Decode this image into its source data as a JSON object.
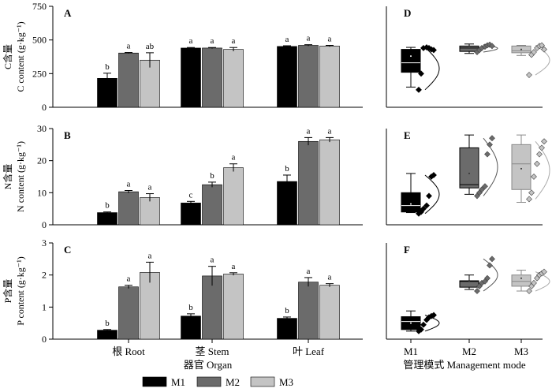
{
  "colors": {
    "M1": "#000000",
    "M2": "#6b6b6b",
    "M3": "#c4c4c4"
  },
  "legend": [
    "M1",
    "M2",
    "M3"
  ],
  "left_xlabel": "器官 Organ",
  "right_xlabel": "管理模式 Management mode",
  "chart_data": [
    {
      "type": "bar",
      "panel": "A",
      "ylabel_cn": "C含量",
      "ylabel_en": "C content (g·kg⁻¹)",
      "ylim": [
        0,
        750
      ],
      "yticks": [
        0,
        250,
        500,
        750
      ],
      "categories": [
        "根 Root",
        "茎 Stem",
        "叶 Leaf"
      ],
      "series": [
        {
          "name": "M1",
          "values": [
            215,
            440,
            452
          ],
          "errors": [
            38,
            4,
            5
          ],
          "letters": [
            "b",
            "a",
            "a"
          ]
        },
        {
          "name": "M2",
          "values": [
            403,
            440,
            460
          ],
          "errors": [
            4,
            4,
            5
          ],
          "letters": [
            "a",
            "a",
            "a"
          ]
        },
        {
          "name": "M3",
          "values": [
            350,
            430,
            455
          ],
          "errors": [
            55,
            14,
            5
          ],
          "letters": [
            "ab",
            "a",
            "a"
          ]
        }
      ]
    },
    {
      "type": "bar",
      "panel": "B",
      "ylabel_cn": "N含量",
      "ylabel_en": "N content (g·kg⁻¹)",
      "ylim": [
        0,
        30
      ],
      "yticks": [
        0,
        10,
        20,
        30
      ],
      "categories": [
        "根 Root",
        "茎 Stem",
        "叶 Leaf"
      ],
      "series": [
        {
          "name": "M1",
          "values": [
            3.8,
            6.8,
            13.5
          ],
          "errors": [
            0.2,
            0.5,
            2
          ],
          "letters": [
            "b",
            "c",
            "b"
          ]
        },
        {
          "name": "M2",
          "values": [
            10.3,
            12.5,
            26
          ],
          "errors": [
            0.4,
            0.8,
            1.2
          ],
          "letters": [
            "a",
            "b",
            "a"
          ]
        },
        {
          "name": "M3",
          "values": [
            8.5,
            17.8,
            26.5
          ],
          "errors": [
            1.2,
            1.2,
            0.7
          ],
          "letters": [
            "a",
            "a",
            "a"
          ]
        }
      ]
    },
    {
      "type": "bar",
      "panel": "C",
      "ylabel_cn": "P含量",
      "ylabel_en": "P content (g·kg⁻¹)",
      "ylim": [
        0,
        3
      ],
      "yticks": [
        0,
        1,
        2,
        3
      ],
      "categories": [
        "根 Root",
        "茎 Stem",
        "叶 Leaf"
      ],
      "series": [
        {
          "name": "M1",
          "values": [
            0.28,
            0.72,
            0.65
          ],
          "errors": [
            0.02,
            0.07,
            0.04
          ],
          "letters": [
            "b",
            "b",
            "b"
          ]
        },
        {
          "name": "M2",
          "values": [
            1.63,
            1.97,
            1.78
          ],
          "errors": [
            0.05,
            0.3,
            0.14
          ],
          "letters": [
            "a",
            "a",
            "a"
          ]
        },
        {
          "name": "M3",
          "values": [
            2.08,
            2.03,
            1.68
          ],
          "errors": [
            0.32,
            0.04,
            0.05
          ],
          "letters": [
            "a",
            "a",
            "a"
          ]
        }
      ]
    },
    {
      "type": "box",
      "panel": "D",
      "ylim": [
        0,
        750
      ],
      "categories": [
        "M1",
        "M2",
        "M3"
      ],
      "boxes": [
        {
          "whisker_low": 150,
          "q1": 260,
          "median": 330,
          "q3": 430,
          "whisker_high": 445,
          "mean": 380,
          "points": [
            130,
            250,
            440,
            445,
            440,
            430,
            425
          ]
        },
        {
          "whisker_low": 400,
          "q1": 415,
          "median": 440,
          "q3": 455,
          "whisker_high": 470,
          "mean": 440,
          "points": [
            410,
            425,
            440,
            450,
            460,
            465,
            455
          ]
        },
        {
          "whisker_low": 385,
          "q1": 405,
          "median": 420,
          "q3": 455,
          "whisker_high": 460,
          "mean": 430,
          "points": [
            240,
            390,
            410,
            440,
            455,
            460,
            430
          ]
        }
      ]
    },
    {
      "type": "box",
      "panel": "E",
      "ylim": [
        0,
        30
      ],
      "categories": [
        "M1",
        "M2",
        "M3"
      ],
      "boxes": [
        {
          "whisker_low": 3.8,
          "q1": 4,
          "median": 6,
          "q3": 10,
          "whisker_high": 16,
          "mean": 6.5,
          "points": [
            3.5,
            4,
            5,
            6,
            9,
            15,
            15.5
          ]
        },
        {
          "whisker_low": 9.5,
          "q1": 11.5,
          "median": 12.5,
          "q3": 24,
          "whisker_high": 28,
          "mean": 16,
          "points": [
            9,
            10,
            11,
            12,
            22,
            25,
            27
          ]
        },
        {
          "whisker_low": 7,
          "q1": 11,
          "median": 19,
          "q3": 25,
          "whisker_high": 28,
          "mean": 17.5,
          "points": [
            8,
            10,
            15,
            19,
            22,
            24,
            26
          ]
        }
      ]
    },
    {
      "type": "box",
      "panel": "F",
      "ylim": [
        0,
        3
      ],
      "categories": [
        "M1",
        "M2",
        "M3"
      ],
      "boxes": [
        {
          "whisker_low": 0.25,
          "q1": 0.3,
          "median": 0.55,
          "q3": 0.7,
          "whisker_high": 0.88,
          "mean": 0.5,
          "points": [
            0.25,
            0.3,
            0.45,
            0.6,
            0.68,
            0.72,
            0.75
          ]
        },
        {
          "whisker_low": 1.55,
          "q1": 1.62,
          "median": 1.8,
          "q3": 1.82,
          "whisker_high": 2.0,
          "mean": 1.8,
          "points": [
            1.5,
            1.65,
            1.75,
            1.8,
            1.9,
            2.3,
            2.5
          ]
        },
        {
          "whisker_low": 1.5,
          "q1": 1.65,
          "median": 1.8,
          "q3": 2.0,
          "whisker_high": 2.15,
          "mean": 1.9,
          "points": [
            1.5,
            1.65,
            1.75,
            1.9,
            2.0,
            2.05,
            2.1
          ]
        }
      ]
    }
  ]
}
